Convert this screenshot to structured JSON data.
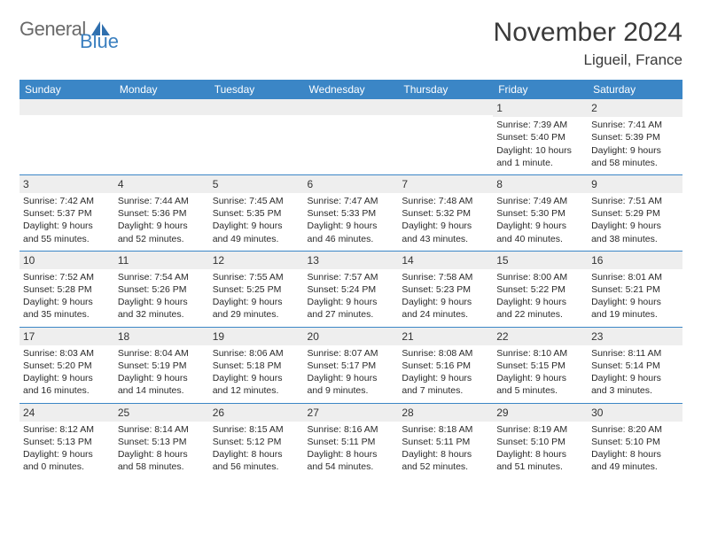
{
  "logo": {
    "word1": "General",
    "word2": "Blue",
    "icon_color": "#2f6fae"
  },
  "title": {
    "month": "November 2024",
    "location": "Ligueil, France"
  },
  "colors": {
    "header_bg": "#3b86c6",
    "header_fg": "#ffffff",
    "daynum_bg": "#eeeeee",
    "text": "#2a2a2a",
    "rule": "#3b86c6"
  },
  "weekdays": [
    "Sunday",
    "Monday",
    "Tuesday",
    "Wednesday",
    "Thursday",
    "Friday",
    "Saturday"
  ],
  "weeks": [
    [
      null,
      null,
      null,
      null,
      null,
      {
        "n": "1",
        "sunrise": "7:39 AM",
        "sunset": "5:40 PM",
        "daylight": "10 hours and 1 minute."
      },
      {
        "n": "2",
        "sunrise": "7:41 AM",
        "sunset": "5:39 PM",
        "daylight": "9 hours and 58 minutes."
      }
    ],
    [
      {
        "n": "3",
        "sunrise": "7:42 AM",
        "sunset": "5:37 PM",
        "daylight": "9 hours and 55 minutes."
      },
      {
        "n": "4",
        "sunrise": "7:44 AM",
        "sunset": "5:36 PM",
        "daylight": "9 hours and 52 minutes."
      },
      {
        "n": "5",
        "sunrise": "7:45 AM",
        "sunset": "5:35 PM",
        "daylight": "9 hours and 49 minutes."
      },
      {
        "n": "6",
        "sunrise": "7:47 AM",
        "sunset": "5:33 PM",
        "daylight": "9 hours and 46 minutes."
      },
      {
        "n": "7",
        "sunrise": "7:48 AM",
        "sunset": "5:32 PM",
        "daylight": "9 hours and 43 minutes."
      },
      {
        "n": "8",
        "sunrise": "7:49 AM",
        "sunset": "5:30 PM",
        "daylight": "9 hours and 40 minutes."
      },
      {
        "n": "9",
        "sunrise": "7:51 AM",
        "sunset": "5:29 PM",
        "daylight": "9 hours and 38 minutes."
      }
    ],
    [
      {
        "n": "10",
        "sunrise": "7:52 AM",
        "sunset": "5:28 PM",
        "daylight": "9 hours and 35 minutes."
      },
      {
        "n": "11",
        "sunrise": "7:54 AM",
        "sunset": "5:26 PM",
        "daylight": "9 hours and 32 minutes."
      },
      {
        "n": "12",
        "sunrise": "7:55 AM",
        "sunset": "5:25 PM",
        "daylight": "9 hours and 29 minutes."
      },
      {
        "n": "13",
        "sunrise": "7:57 AM",
        "sunset": "5:24 PM",
        "daylight": "9 hours and 27 minutes."
      },
      {
        "n": "14",
        "sunrise": "7:58 AM",
        "sunset": "5:23 PM",
        "daylight": "9 hours and 24 minutes."
      },
      {
        "n": "15",
        "sunrise": "8:00 AM",
        "sunset": "5:22 PM",
        "daylight": "9 hours and 22 minutes."
      },
      {
        "n": "16",
        "sunrise": "8:01 AM",
        "sunset": "5:21 PM",
        "daylight": "9 hours and 19 minutes."
      }
    ],
    [
      {
        "n": "17",
        "sunrise": "8:03 AM",
        "sunset": "5:20 PM",
        "daylight": "9 hours and 16 minutes."
      },
      {
        "n": "18",
        "sunrise": "8:04 AM",
        "sunset": "5:19 PM",
        "daylight": "9 hours and 14 minutes."
      },
      {
        "n": "19",
        "sunrise": "8:06 AM",
        "sunset": "5:18 PM",
        "daylight": "9 hours and 12 minutes."
      },
      {
        "n": "20",
        "sunrise": "8:07 AM",
        "sunset": "5:17 PM",
        "daylight": "9 hours and 9 minutes."
      },
      {
        "n": "21",
        "sunrise": "8:08 AM",
        "sunset": "5:16 PM",
        "daylight": "9 hours and 7 minutes."
      },
      {
        "n": "22",
        "sunrise": "8:10 AM",
        "sunset": "5:15 PM",
        "daylight": "9 hours and 5 minutes."
      },
      {
        "n": "23",
        "sunrise": "8:11 AM",
        "sunset": "5:14 PM",
        "daylight": "9 hours and 3 minutes."
      }
    ],
    [
      {
        "n": "24",
        "sunrise": "8:12 AM",
        "sunset": "5:13 PM",
        "daylight": "9 hours and 0 minutes."
      },
      {
        "n": "25",
        "sunrise": "8:14 AM",
        "sunset": "5:13 PM",
        "daylight": "8 hours and 58 minutes."
      },
      {
        "n": "26",
        "sunrise": "8:15 AM",
        "sunset": "5:12 PM",
        "daylight": "8 hours and 56 minutes."
      },
      {
        "n": "27",
        "sunrise": "8:16 AM",
        "sunset": "5:11 PM",
        "daylight": "8 hours and 54 minutes."
      },
      {
        "n": "28",
        "sunrise": "8:18 AM",
        "sunset": "5:11 PM",
        "daylight": "8 hours and 52 minutes."
      },
      {
        "n": "29",
        "sunrise": "8:19 AM",
        "sunset": "5:10 PM",
        "daylight": "8 hours and 51 minutes."
      },
      {
        "n": "30",
        "sunrise": "8:20 AM",
        "sunset": "5:10 PM",
        "daylight": "8 hours and 49 minutes."
      }
    ]
  ],
  "labels": {
    "sunrise": "Sunrise: ",
    "sunset": "Sunset: ",
    "daylight": "Daylight: "
  }
}
